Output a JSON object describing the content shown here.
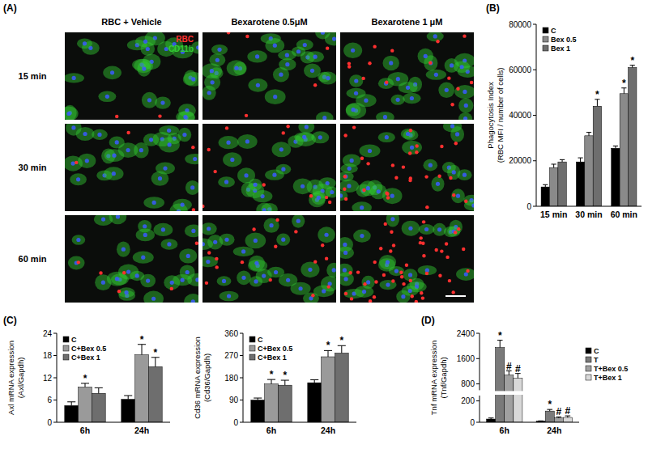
{
  "chart_data": [
    {
      "type": "image_grid",
      "title": "(A)",
      "columns": [
        "RBC + Vehicle",
        "Bexarotene 0.5μM",
        "Bexarotene 1 μM"
      ],
      "rows": [
        "15 min",
        "30 min",
        "60 min"
      ],
      "channels": [
        {
          "name": "RBC",
          "color": "#ff3030"
        },
        {
          "name": "CD11b",
          "color": "#33cc33"
        }
      ]
    },
    {
      "type": "bar",
      "title": "(B)",
      "y_label": [
        "Phagocytosis Index",
        "(RBC MFI / number of cells)"
      ],
      "categories": [
        "15 min",
        "30 min",
        "60 min"
      ],
      "series": [
        {
          "name": "C",
          "color": "#000000",
          "values": [
            8500,
            19500,
            25500
          ],
          "errors": [
            1000,
            1800,
            1000
          ],
          "significance": [
            null,
            null,
            null
          ]
        },
        {
          "name": "Bex 0.5",
          "color": "#8a8a8a",
          "values": [
            17000,
            31000,
            49500
          ],
          "errors": [
            1500,
            1500,
            2500
          ],
          "significance": [
            null,
            null,
            "*"
          ]
        },
        {
          "name": "Bex 1",
          "color": "#6e6e6e",
          "values": [
            19500,
            44000,
            61000
          ],
          "errors": [
            1000,
            3000,
            1000
          ],
          "significance": [
            null,
            "*",
            "*"
          ]
        }
      ],
      "ylim": [
        0,
        80000
      ],
      "yticks": [
        0,
        20000,
        40000,
        60000,
        80000
      ],
      "legend": "top-left"
    },
    {
      "type": "bar",
      "title": "(C)",
      "y_label": [
        "Axl mRNA expression",
        "(Axl/Gapdh)"
      ],
      "categories": [
        "6h",
        "24h"
      ],
      "series": [
        {
          "name": "C",
          "color": "#000000",
          "values": [
            4.5,
            6.2
          ],
          "errors": [
            1,
            1
          ],
          "significance": [
            null,
            null
          ]
        },
        {
          "name": "C+Bex 0.5",
          "color": "#9a9a9a",
          "values": [
            9.5,
            18.2
          ],
          "errors": [
            1,
            2.8
          ],
          "significance": [
            "*",
            "*"
          ]
        },
        {
          "name": "C+Bex 1",
          "color": "#6e6e6e",
          "values": [
            7.8,
            15
          ],
          "errors": [
            1.5,
            2.5
          ],
          "significance": [
            null,
            "*"
          ]
        }
      ],
      "ylim": [
        0,
        24
      ],
      "yticks": [
        0,
        6,
        12,
        18,
        24
      ],
      "legend": "top-left"
    },
    {
      "type": "bar",
      "y_label": [
        "Cd36 mRNA expression",
        "(Cd36/Gapdh)"
      ],
      "categories": [
        "6h",
        "24h"
      ],
      "series": [
        {
          "name": "C",
          "color": "#000000",
          "values": [
            90,
            160
          ],
          "errors": [
            8,
            12
          ],
          "significance": [
            null,
            null
          ]
        },
        {
          "name": "C+Bex 0.5",
          "color": "#9a9a9a",
          "values": [
            155,
            265
          ],
          "errors": [
            18,
            25
          ],
          "significance": [
            "*",
            "*"
          ]
        },
        {
          "name": "C+Bex 1",
          "color": "#6e6e6e",
          "values": [
            150,
            280
          ],
          "errors": [
            20,
            30
          ],
          "significance": [
            "*",
            "*"
          ]
        }
      ],
      "ylim": [
        0,
        360
      ],
      "yticks": [
        0,
        90,
        180,
        270,
        360
      ],
      "legend": "top-left"
    },
    {
      "type": "bar",
      "title": "(D)",
      "y_label": [
        "Tnf mRNA expression",
        "(Tnf/Gapdh)"
      ],
      "categories": [
        "6h",
        "24h"
      ],
      "series": [
        {
          "name": "C",
          "color": "#000000",
          "values": [
            30,
            10
          ],
          "errors": [
            10,
            3
          ],
          "significance": [
            null,
            null
          ]
        },
        {
          "name": "T",
          "color": "#7a7a7a",
          "values": [
            1950,
            105
          ],
          "errors": [
            230,
            15
          ],
          "significance": [
            "*",
            "*"
          ]
        },
        {
          "name": "T+Bex 0.5",
          "color": "#a0a0a0",
          "values": [
            1080,
            40
          ],
          "errors": [
            130,
            10
          ],
          "significance": [
            "#",
            "#"
          ]
        },
        {
          "name": "T+Bex 1",
          "color": "#d9d9d9",
          "values": [
            980,
            45
          ],
          "errors": [
            150,
            15
          ],
          "significance": [
            "#",
            "#"
          ]
        }
      ],
      "ylim": [
        0,
        2400
      ],
      "y_break": [
        250,
        600
      ],
      "yticks": [
        0,
        200,
        800,
        1600,
        2400
      ],
      "legend": "right"
    }
  ]
}
